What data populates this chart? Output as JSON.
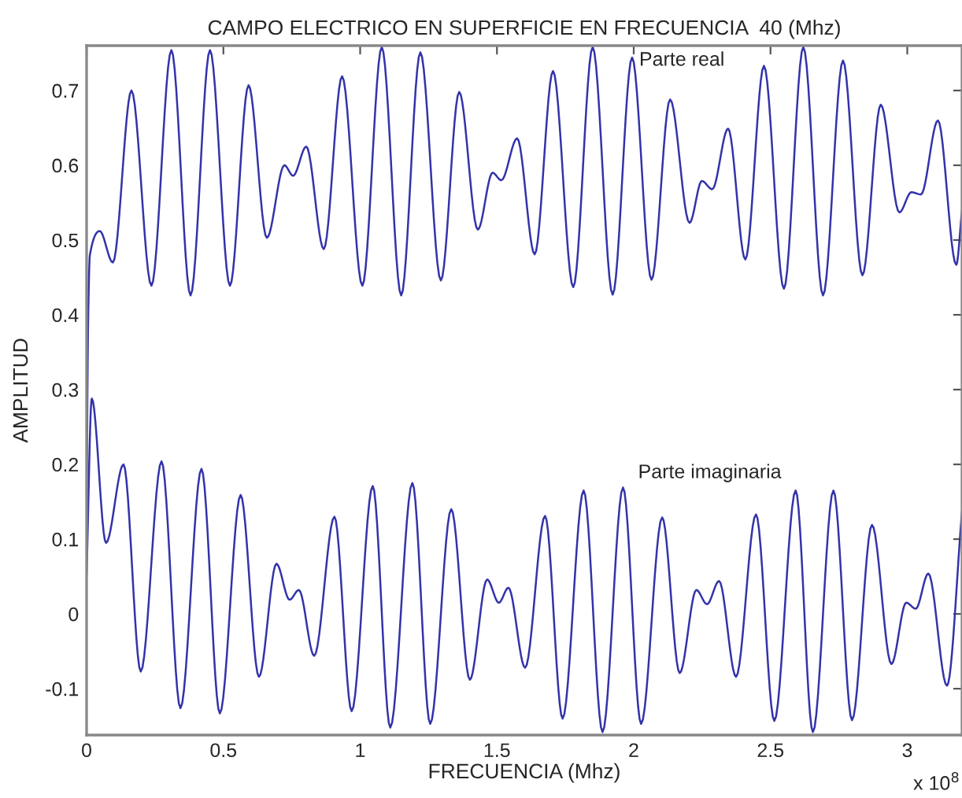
{
  "chart_data": {
    "type": "line",
    "title": "CAMPO ELECTRICO EN SUPERFICIE EN FRECUENCIA  40 (Mhz)",
    "xlabel": "FRECUENCIA (Mhz)",
    "ylabel": "AMPLITUD",
    "xlim": [
      0,
      3.2
    ],
    "xticks": [
      0,
      0.5,
      1,
      1.5,
      2,
      2.5,
      3
    ],
    "ylim": [
      -0.162,
      0.76
    ],
    "yticks": [
      -0.1,
      0,
      0.1,
      0.2,
      0.3,
      0.4,
      0.5,
      0.6,
      0.7
    ],
    "grid": false,
    "line_style": "solid",
    "marker": "none",
    "annotations": [
      {
        "text": "Parte real",
        "x": 2.02,
        "y": 0.74
      },
      "Parte imaginaria",
      "x 10$^{8}$"
    ],
    "series": [
      {
        "color": "#3333aa",
        "x": [
          0,
          0.006,
          0.012,
          0.048,
          0.096,
          0.164,
          0.237,
          0.31,
          0.38,
          0.451,
          0.524,
          0.592,
          0.659,
          0.723,
          0.755,
          0.803,
          0.867,
          0.934,
          1.008,
          1.079,
          1.15,
          1.22,
          1.295,
          1.362,
          1.43,
          1.484,
          1.516,
          1.574,
          1.638,
          1.705,
          1.779,
          1.85,
          1.923,
          1.994,
          2.065,
          2.133,
          2.204,
          2.249,
          2.287,
          2.345,
          2.408,
          2.476,
          2.549,
          2.62,
          2.692,
          2.765,
          2.836,
          2.903,
          2.971,
          3.015,
          3.05,
          3.112,
          3.179,
          3.2
        ],
        "values": [
          0.15,
          0.4,
          0.48,
          0.512,
          0.47,
          0.7,
          0.439,
          0.754,
          0.426,
          0.754,
          0.439,
          0.707,
          0.503,
          0.6,
          0.586,
          0.625,
          0.488,
          0.719,
          0.439,
          0.758,
          0.426,
          0.751,
          0.446,
          0.698,
          0.514,
          0.59,
          0.58,
          0.636,
          0.481,
          0.726,
          0.437,
          0.758,
          0.427,
          0.744,
          0.447,
          0.688,
          0.523,
          0.579,
          0.568,
          0.649,
          0.474,
          0.733,
          0.435,
          0.758,
          0.426,
          0.74,
          0.453,
          0.681,
          0.537,
          0.564,
          0.561,
          0.66,
          0.467,
          0.54
        ]
      },
      {
        "color": "#3333aa",
        "x": [
          0,
          0.019,
          0.071,
          0.135,
          0.198,
          0.274,
          0.343,
          0.42,
          0.487,
          0.563,
          0.63,
          0.694,
          0.742,
          0.776,
          0.832,
          0.906,
          0.969,
          1.046,
          1.11,
          1.191,
          1.256,
          1.333,
          1.401,
          1.464,
          1.507,
          1.542,
          1.603,
          1.676,
          1.74,
          1.817,
          1.886,
          1.961,
          2.027,
          2.104,
          2.168,
          2.229,
          2.268,
          2.312,
          2.374,
          2.447,
          2.514,
          2.592,
          2.655,
          2.73,
          2.798,
          2.871,
          2.942,
          2.996,
          3.031,
          3.077,
          3.145,
          3.2
        ],
        "values": [
          0.053,
          0.288,
          0.095,
          0.2,
          -0.077,
          0.204,
          -0.126,
          0.194,
          -0.133,
          0.159,
          -0.084,
          0.067,
          0.019,
          0.032,
          -0.056,
          0.13,
          -0.13,
          0.171,
          -0.152,
          0.175,
          -0.147,
          0.14,
          -0.088,
          0.046,
          0.015,
          0.035,
          -0.072,
          0.131,
          -0.14,
          0.165,
          -0.158,
          0.169,
          -0.147,
          0.129,
          -0.079,
          0.032,
          0.013,
          0.044,
          -0.084,
          0.133,
          -0.143,
          0.165,
          -0.158,
          0.165,
          -0.142,
          0.119,
          -0.067,
          0.015,
          0.007,
          0.054,
          -0.096,
          0.137
        ]
      }
    ]
  }
}
